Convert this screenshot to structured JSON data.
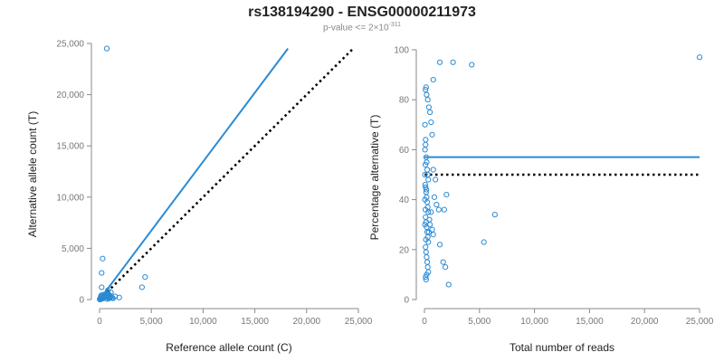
{
  "title": "rs138194290 - ENSG00000211973",
  "subtitle": {
    "prefix": "p-value <= 2",
    "times": "×",
    "base": "10",
    "exponent": "-311"
  },
  "colors": {
    "points": "#2a8ad4",
    "fit_line": "#2a8ad4",
    "reference_line": "#000000",
    "axis": "#888888"
  },
  "chart_data": [
    {
      "type": "scatter",
      "xlabel": "Reference allele count (C)",
      "ylabel": "Alternative allele count (T)",
      "xlim": [
        0,
        25000
      ],
      "ylim": [
        0,
        25000
      ],
      "xticks": [
        0,
        5000,
        10000,
        15000,
        20000,
        25000
      ],
      "xtick_labels": [
        "0",
        "5,000",
        "10,000",
        "15,000",
        "20,000",
        "25,000"
      ],
      "yticks": [
        0,
        5000,
        10000,
        15000,
        20000,
        25000
      ],
      "ytick_labels": [
        "0",
        "5,000",
        "10,000",
        "15,000",
        "20,000",
        "25,000"
      ],
      "grid": false,
      "points": [
        [
          700,
          24500
        ],
        [
          300,
          4000
        ],
        [
          200,
          2600
        ],
        [
          200,
          1200
        ],
        [
          4400,
          2200
        ],
        [
          4100,
          1200
        ],
        [
          1500,
          300
        ],
        [
          1900,
          200
        ],
        [
          1100,
          700
        ],
        [
          800,
          900
        ],
        [
          900,
          400
        ],
        [
          1000,
          300
        ],
        [
          600,
          500
        ],
        [
          500,
          300
        ],
        [
          400,
          200
        ],
        [
          300,
          100
        ],
        [
          200,
          50
        ],
        [
          100,
          30
        ],
        [
          50,
          20
        ],
        [
          150,
          80
        ],
        [
          250,
          150
        ],
        [
          350,
          250
        ],
        [
          450,
          350
        ],
        [
          550,
          450
        ],
        [
          650,
          550
        ],
        [
          750,
          600
        ],
        [
          850,
          500
        ],
        [
          950,
          450
        ],
        [
          120,
          300
        ],
        [
          80,
          150
        ],
        [
          60,
          60
        ],
        [
          180,
          420
        ],
        [
          280,
          380
        ],
        [
          380,
          480
        ],
        [
          480,
          180
        ],
        [
          580,
          220
        ],
        [
          680,
          320
        ],
        [
          780,
          260
        ],
        [
          880,
          200
        ],
        [
          980,
          150
        ],
        [
          1080,
          250
        ],
        [
          1200,
          180
        ],
        [
          1300,
          120
        ],
        [
          30,
          10
        ],
        [
          20,
          40
        ],
        [
          700,
          50
        ],
        [
          900,
          100
        ]
      ],
      "fit_line": {
        "x": [
          0,
          18200
        ],
        "y": [
          0,
          24500
        ]
      },
      "reference_line": {
        "x": [
          0,
          24500
        ],
        "y": [
          0,
          24500
        ]
      }
    },
    {
      "type": "scatter",
      "xlabel": "Total number of reads",
      "ylabel": "Percentage alternative (T)",
      "xlim": [
        0,
        25000
      ],
      "ylim": [
        0,
        100
      ],
      "xticks": [
        0,
        5000,
        10000,
        15000,
        20000,
        25000
      ],
      "xtick_labels": [
        "0",
        "5,000",
        "10,000",
        "15,000",
        "20,000",
        "25,000"
      ],
      "yticks": [
        0,
        20,
        40,
        60,
        80,
        100
      ],
      "ytick_labels": [
        "0",
        "20",
        "40",
        "60",
        "80",
        "100"
      ],
      "grid": false,
      "points": [
        [
          25000,
          97
        ],
        [
          1400,
          95
        ],
        [
          2600,
          95
        ],
        [
          4300,
          94
        ],
        [
          800,
          88
        ],
        [
          6400,
          34
        ],
        [
          5400,
          23
        ],
        [
          2000,
          42
        ],
        [
          1800,
          36
        ],
        [
          1400,
          22
        ],
        [
          2200,
          6
        ],
        [
          1700,
          15
        ],
        [
          1900,
          13
        ],
        [
          1300,
          36
        ],
        [
          1100,
          38
        ],
        [
          1000,
          48
        ],
        [
          900,
          41
        ],
        [
          800,
          52
        ],
        [
          700,
          66
        ],
        [
          600,
          71
        ],
        [
          500,
          75
        ],
        [
          400,
          77
        ],
        [
          300,
          80
        ],
        [
          200,
          82
        ],
        [
          150,
          85
        ],
        [
          100,
          84
        ],
        [
          100,
          62
        ],
        [
          150,
          57
        ],
        [
          200,
          55
        ],
        [
          250,
          52
        ],
        [
          300,
          50
        ],
        [
          350,
          48
        ],
        [
          100,
          45
        ],
        [
          150,
          43
        ],
        [
          200,
          41
        ],
        [
          250,
          39
        ],
        [
          300,
          37
        ],
        [
          350,
          35
        ],
        [
          100,
          33
        ],
        [
          150,
          31
        ],
        [
          200,
          29
        ],
        [
          250,
          27
        ],
        [
          300,
          25
        ],
        [
          350,
          23
        ],
        [
          100,
          21
        ],
        [
          150,
          19
        ],
        [
          200,
          17
        ],
        [
          250,
          15
        ],
        [
          300,
          13
        ],
        [
          350,
          11
        ],
        [
          100,
          9
        ],
        [
          150,
          8
        ],
        [
          200,
          10
        ],
        [
          400,
          27
        ],
        [
          450,
          32
        ],
        [
          500,
          30
        ],
        [
          600,
          35
        ],
        [
          700,
          28
        ],
        [
          800,
          26
        ],
        [
          50,
          50
        ],
        [
          50,
          40
        ],
        [
          50,
          30
        ],
        [
          50,
          60
        ],
        [
          50,
          70
        ],
        [
          70,
          46
        ],
        [
          80,
          54
        ],
        [
          90,
          36
        ],
        [
          110,
          64
        ],
        [
          130,
          24
        ],
        [
          170,
          44
        ]
      ],
      "fit_line": {
        "x": [
          0,
          25000
        ],
        "y": [
          57,
          57
        ]
      },
      "reference_line": {
        "x": [
          0,
          25000
        ],
        "y": [
          50,
          50
        ]
      }
    }
  ]
}
